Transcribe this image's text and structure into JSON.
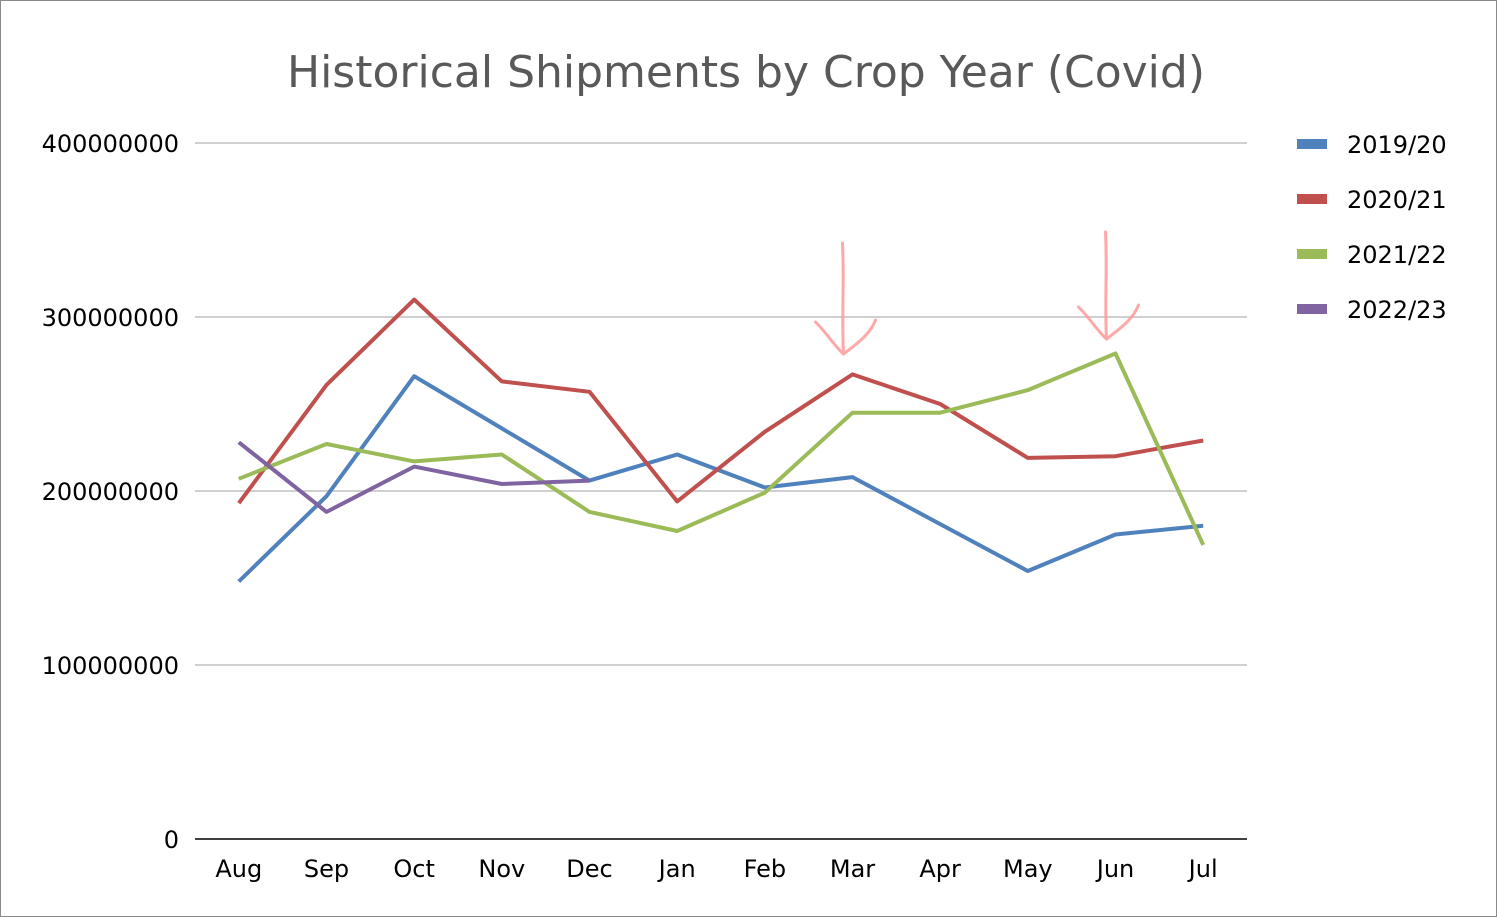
{
  "chart_data": {
    "type": "line",
    "title": "Historical Shipments by Crop Year (Covid)",
    "xlabel": "",
    "ylabel": "",
    "categories": [
      "Aug",
      "Sep",
      "Oct",
      "Nov",
      "Dec",
      "Jan",
      "Feb",
      "Mar",
      "Apr",
      "May",
      "Jun",
      "Jul"
    ],
    "ylim": [
      0,
      400000000
    ],
    "yticks": [
      0,
      100000000,
      200000000,
      300000000,
      400000000
    ],
    "ytick_labels": [
      "0",
      "100000000",
      "200000000",
      "300000000",
      "400000000"
    ],
    "grid": true,
    "legend_position": "right",
    "series": [
      {
        "name": "2019/20",
        "color": "#4f81bd",
        "values": [
          148000000,
          197000000,
          266000000,
          236000000,
          206000000,
          221000000,
          202000000,
          208000000,
          181000000,
          154000000,
          175000000,
          180000000
        ]
      },
      {
        "name": "2020/21",
        "color": "#c0504d",
        "values": [
          193000000,
          261000000,
          310000000,
          263000000,
          257000000,
          194000000,
          234000000,
          267000000,
          250000000,
          219000000,
          220000000,
          229000000
        ]
      },
      {
        "name": "2021/22",
        "color": "#9bbb59",
        "values": [
          207000000,
          227000000,
          217000000,
          221000000,
          188000000,
          177000000,
          199000000,
          245000000,
          245000000,
          258000000,
          279000000,
          169000000
        ]
      },
      {
        "name": "2022/23",
        "color": "#8064a2",
        "values": [
          228000000,
          188000000,
          214000000,
          204000000,
          206000000,
          null,
          null,
          null,
          null,
          null,
          null,
          null
        ]
      }
    ],
    "annotations": [
      {
        "type": "arrow",
        "color": "#ff9999",
        "category": "Mar",
        "description": "hand-drawn downward arrow"
      },
      {
        "type": "arrow",
        "color": "#ff9999",
        "category": "Jun",
        "description": "hand-drawn downward arrow"
      }
    ]
  }
}
